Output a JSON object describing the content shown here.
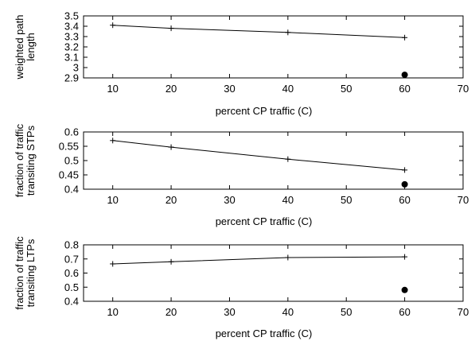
{
  "chart_data": [
    {
      "type": "line",
      "xlabel": "percent CP traffic (C)",
      "ylabel_lines": [
        "weighted path",
        "length"
      ],
      "xlim": [
        5,
        70
      ],
      "ylim": [
        2.9,
        3.5
      ],
      "xticks": [
        10,
        20,
        30,
        40,
        50,
        60,
        70
      ],
      "yticks": [
        "2.9",
        "3",
        "3.1",
        "3.2",
        "3.3",
        "3.4",
        "3.5"
      ],
      "series": [
        {
          "marker": "plus",
          "x": [
            10,
            20,
            40,
            60
          ],
          "y": [
            3.41,
            3.38,
            3.34,
            3.29
          ]
        },
        {
          "marker": "dot",
          "x": [
            60
          ],
          "y": [
            2.93
          ]
        }
      ]
    },
    {
      "type": "line",
      "xlabel": "percent CP traffic (C)",
      "ylabel_lines": [
        "fraction of traffic",
        "transiting STPs"
      ],
      "xlim": [
        5,
        70
      ],
      "ylim": [
        0.4,
        0.6
      ],
      "xticks": [
        10,
        20,
        30,
        40,
        50,
        60,
        70
      ],
      "yticks": [
        "0.4",
        "0.45",
        "0.5",
        "0.55",
        "0.6"
      ],
      "series": [
        {
          "marker": "plus",
          "x": [
            10,
            20,
            40,
            60
          ],
          "y": [
            0.57,
            0.547,
            0.505,
            0.467
          ]
        },
        {
          "marker": "dot",
          "x": [
            60
          ],
          "y": [
            0.417
          ]
        }
      ]
    },
    {
      "type": "line",
      "xlabel": "percent CP traffic (C)",
      "ylabel_lines": [
        "fraction of traffic",
        "transiting LTPs"
      ],
      "xlim": [
        5,
        70
      ],
      "ylim": [
        0.4,
        0.8
      ],
      "xticks": [
        10,
        20,
        30,
        40,
        50,
        60,
        70
      ],
      "yticks": [
        "0.4",
        "0.5",
        "0.6",
        "0.7",
        "0.8"
      ],
      "series": [
        {
          "marker": "plus",
          "x": [
            10,
            20,
            40,
            60
          ],
          "y": [
            0.665,
            0.68,
            0.71,
            0.715
          ]
        },
        {
          "marker": "dot",
          "x": [
            60
          ],
          "y": [
            0.48
          ]
        }
      ]
    }
  ]
}
